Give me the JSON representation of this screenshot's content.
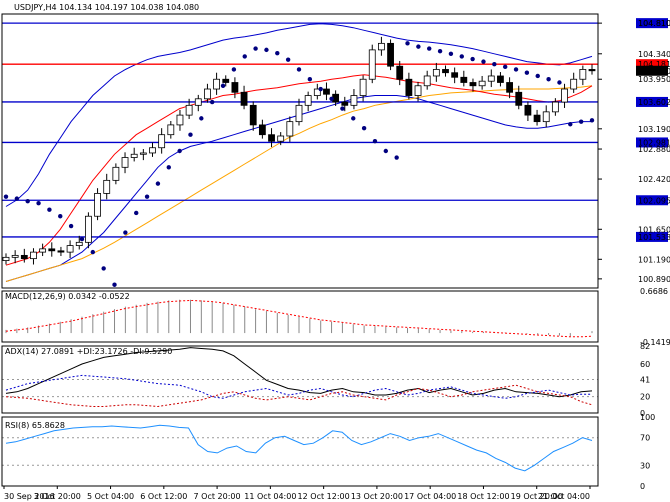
{
  "chart_data": [
    {
      "type": "candlestick",
      "pane": "main",
      "header": "USDJPY,H4  104.134 104.197 104.038 104.080",
      "ylim": [
        100.75,
        104.95
      ],
      "price_ticks": [
        "104.810",
        "104.340",
        "103.950",
        "103.190",
        "102.880",
        "102.420",
        "101.650",
        "101.190",
        "100.890"
      ],
      "levels": [
        {
          "label": "104.810",
          "value": 104.81,
          "color": "#0000cc"
        },
        {
          "label": "104.181",
          "value": 104.181,
          "color": "#ff0000"
        },
        {
          "label": "103.602",
          "value": 103.602,
          "color": "#0000cc"
        },
        {
          "label": "102.981",
          "value": 102.981,
          "color": "#0000cc"
        },
        {
          "label": "102.095",
          "value": 102.095,
          "color": "#0000cc"
        },
        {
          "label": "101.533",
          "value": 101.533,
          "color": "#0000cc"
        }
      ],
      "current_price": {
        "label": "104.080",
        "value": 104.08
      },
      "close": [
        101.22,
        101.25,
        101.2,
        101.3,
        101.35,
        101.32,
        101.3,
        101.4,
        101.45,
        101.85,
        102.2,
        102.4,
        102.6,
        102.75,
        102.8,
        102.82,
        102.9,
        103.1,
        103.25,
        103.4,
        103.55,
        103.65,
        103.8,
        103.95,
        103.9,
        103.75,
        103.55,
        103.25,
        103.1,
        103.0,
        103.08,
        103.3,
        103.55,
        103.7,
        103.8,
        103.72,
        103.6,
        103.55,
        103.7,
        103.95,
        104.4,
        104.5,
        104.15,
        103.95,
        103.7,
        103.85,
        104.0,
        104.1,
        104.05,
        103.98,
        103.9,
        103.85,
        103.92,
        104.0,
        103.9,
        103.75,
        103.55,
        103.4,
        103.3,
        103.45,
        103.6,
        103.8,
        103.95,
        104.1,
        104.08
      ],
      "upper_band": [
        102.0,
        102.1,
        102.25,
        102.5,
        102.8,
        103.05,
        103.3,
        103.5,
        103.7,
        103.85,
        104.0,
        104.1,
        104.18,
        104.25,
        104.3,
        104.33,
        104.36,
        104.4,
        104.45,
        104.5,
        104.55,
        104.58,
        104.6,
        104.63,
        104.66,
        104.7,
        104.73,
        104.76,
        104.79,
        104.8,
        104.79,
        104.77,
        104.74,
        104.7,
        104.66,
        104.62,
        104.58,
        104.55,
        104.53,
        104.52,
        104.5,
        104.48,
        104.45,
        104.42,
        104.38,
        104.34,
        104.3,
        104.26,
        104.22,
        104.2,
        104.18,
        104.17,
        104.2,
        104.25,
        104.3
      ],
      "lower_band": [
        100.85,
        100.9,
        100.95,
        101.0,
        101.05,
        101.1,
        101.2,
        101.3,
        101.45,
        101.6,
        101.8,
        102.0,
        102.2,
        102.4,
        102.6,
        102.75,
        102.85,
        102.92,
        102.96,
        103.0,
        103.05,
        103.1,
        103.15,
        103.2,
        103.25,
        103.3,
        103.35,
        103.4,
        103.45,
        103.5,
        103.55,
        103.6,
        103.65,
        103.68,
        103.7,
        103.7,
        103.7,
        103.68,
        103.65,
        103.6,
        103.55,
        103.5,
        103.45,
        103.4,
        103.35,
        103.3,
        103.25,
        103.22,
        103.2,
        103.2,
        103.22,
        103.25,
        103.28,
        103.3,
        103.3
      ],
      "ma_fast": [
        101.1,
        101.15,
        101.2,
        101.3,
        101.45,
        101.65,
        101.9,
        102.15,
        102.4,
        102.6,
        102.8,
        102.95,
        103.1,
        103.2,
        103.3,
        103.4,
        103.5,
        103.55,
        103.6,
        103.65,
        103.7,
        103.72,
        103.75,
        103.78,
        103.8,
        103.82,
        103.85,
        103.88,
        103.9,
        103.92,
        103.95,
        103.97,
        104.0,
        104.02,
        104.0,
        103.98,
        103.95,
        103.92,
        103.9,
        103.88,
        103.85,
        103.82,
        103.8,
        103.78,
        103.75,
        103.72,
        103.7,
        103.68,
        103.65,
        103.62,
        103.6,
        103.62,
        103.68,
        103.75,
        103.85
      ],
      "ma_slow": [
        100.85,
        100.9,
        100.95,
        101.0,
        101.05,
        101.1,
        101.15,
        101.2,
        101.28,
        101.36,
        101.45,
        101.55,
        101.65,
        101.75,
        101.85,
        101.95,
        102.05,
        102.15,
        102.25,
        102.35,
        102.45,
        102.55,
        102.65,
        102.75,
        102.85,
        102.95,
        103.05,
        103.12,
        103.2,
        103.27,
        103.33,
        103.4,
        103.46,
        103.5,
        103.55,
        103.58,
        103.61,
        103.64,
        103.67,
        103.7,
        103.72,
        103.74,
        103.75,
        103.76,
        103.77,
        103.78,
        103.79,
        103.8,
        103.8,
        103.8,
        103.8,
        103.81,
        103.82,
        103.83,
        103.85
      ],
      "sar": [
        102.15,
        102.12,
        102.08,
        102.05,
        101.95,
        101.85,
        101.7,
        101.5,
        101.3,
        101.05,
        100.8,
        101.6,
        101.9,
        102.15,
        102.35,
        102.6,
        102.85,
        103.1,
        103.35,
        103.6,
        103.85,
        104.1,
        104.3,
        104.42,
        104.4,
        104.35,
        104.25,
        104.1,
        103.95,
        103.8,
        103.65,
        103.5,
        103.35,
        103.2,
        103.0,
        102.85,
        102.75,
        104.5,
        104.45,
        104.42,
        104.38,
        104.34,
        104.3,
        104.26,
        104.22,
        104.18,
        104.14,
        104.1,
        104.05,
        104.0,
        103.95,
        103.9,
        103.26,
        103.3,
        103.32
      ]
    },
    {
      "type": "line",
      "pane": "macd",
      "label": "MACD(12,26,9) 0.0342 -0.0522",
      "ylim": [
        -0.1419,
        0.6686
      ],
      "ticks": [
        "0.6686",
        "-0.1419"
      ],
      "histogram": [
        0.05,
        0.07,
        0.09,
        0.12,
        0.15,
        0.18,
        0.22,
        0.26,
        0.3,
        0.34,
        0.38,
        0.42,
        0.45,
        0.48,
        0.5,
        0.52,
        0.53,
        0.53,
        0.52,
        0.5,
        0.48,
        0.45,
        0.42,
        0.38,
        0.35,
        0.32,
        0.29,
        0.26,
        0.23,
        0.2,
        0.18,
        0.16,
        0.14,
        0.12,
        0.11,
        0.1,
        0.09,
        0.08,
        0.07,
        0.06,
        0.05,
        0.04,
        0.03,
        0.02,
        0.02,
        0.01,
        0.01,
        0.0,
        -0.01,
        -0.02,
        -0.03,
        -0.04,
        -0.05,
        0.0,
        0.03
      ],
      "signal": [
        0.03,
        0.05,
        0.07,
        0.1,
        0.13,
        0.16,
        0.19,
        0.23,
        0.27,
        0.31,
        0.35,
        0.39,
        0.42,
        0.45,
        0.48,
        0.5,
        0.51,
        0.52,
        0.51,
        0.5,
        0.48,
        0.45,
        0.42,
        0.39,
        0.36,
        0.33,
        0.3,
        0.27,
        0.24,
        0.21,
        0.19,
        0.17,
        0.15,
        0.13,
        0.12,
        0.11,
        0.1,
        0.09,
        0.08,
        0.07,
        0.06,
        0.05,
        0.04,
        0.03,
        0.02,
        0.01,
        0.0,
        -0.01,
        -0.02,
        -0.03,
        -0.04,
        -0.05,
        -0.06,
        -0.06,
        -0.05
      ]
    },
    {
      "type": "line",
      "pane": "adx",
      "label": "ADX(14) 27.0891 +DI:23.1726 -DI:9.5290",
      "ylim": [
        0,
        82
      ],
      "ticks": [
        "82",
        "60",
        "41",
        "20",
        "0"
      ],
      "series": [
        {
          "label": "ADX",
          "color": "#000000",
          "values": [
            24,
            26,
            30,
            36,
            42,
            48,
            54,
            60,
            64,
            68,
            70,
            72,
            74,
            75,
            76,
            77,
            78,
            80,
            79,
            78,
            76,
            70,
            60,
            50,
            40,
            35,
            30,
            28,
            25,
            24,
            28,
            30,
            26,
            25,
            22,
            22,
            24,
            28,
            30,
            25,
            28,
            30,
            26,
            22,
            24,
            28,
            30,
            26,
            25,
            24,
            22,
            20,
            22,
            26,
            27
          ]
        },
        {
          "label": "+DI",
          "color": "#0000cc",
          "values": [
            28,
            32,
            36,
            38,
            40,
            42,
            44,
            46,
            45,
            44,
            43,
            42,
            40,
            38,
            36,
            35,
            34,
            30,
            26,
            20,
            18,
            22,
            26,
            28,
            30,
            26,
            22,
            24,
            28,
            30,
            26,
            22,
            20,
            24,
            28,
            30,
            26,
            22,
            24,
            28,
            30,
            32,
            28,
            24,
            22,
            20,
            18,
            20,
            24,
            26,
            28,
            25,
            22,
            23,
            23
          ]
        },
        {
          "label": "-DI",
          "color": "#cc0000",
          "values": [
            20,
            19,
            18,
            16,
            14,
            12,
            10,
            9,
            8,
            8,
            9,
            10,
            10,
            9,
            8,
            10,
            12,
            14,
            16,
            20,
            24,
            26,
            22,
            18,
            16,
            18,
            20,
            18,
            16,
            20,
            24,
            26,
            22,
            20,
            18,
            16,
            22,
            26,
            30,
            28,
            24,
            20,
            22,
            26,
            28,
            30,
            32,
            34,
            30,
            26,
            24,
            22,
            20,
            14,
            10
          ]
        }
      ]
    },
    {
      "type": "line",
      "pane": "rsi",
      "label": "RSI(8) 65.8628",
      "ylim": [
        0,
        100
      ],
      "ticks": [
        "100",
        "70",
        "30",
        "0"
      ],
      "values": [
        62,
        64,
        68,
        72,
        76,
        80,
        82,
        84,
        85,
        86,
        86,
        87,
        86,
        85,
        84,
        86,
        88,
        87,
        85,
        84,
        60,
        50,
        48,
        55,
        58,
        50,
        48,
        62,
        70,
        72,
        66,
        60,
        62,
        70,
        80,
        78,
        66,
        60,
        64,
        70,
        76,
        72,
        66,
        70,
        72,
        76,
        70,
        64,
        58,
        52,
        48,
        40,
        34,
        26,
        22,
        30,
        40,
        50,
        56,
        62,
        70,
        66
      ]
    }
  ],
  "time_labels": [
    "30 Sep 2016",
    "3 Oct 20:00",
    "5 Oct 04:00",
    "6 Oct 12:00",
    "7 Oct 20:00",
    "11 Oct 04:00",
    "12 Oct 12:00",
    "13 Oct 20:00",
    "17 Oct 04:00",
    "18 Oct 12:00",
    "19 Oct 20:00",
    "21 Oct 04:00"
  ],
  "colors": {
    "axis": "#000000",
    "grid": "#000000",
    "up": "#ffffff",
    "down": "#000000",
    "band": "#0000cc",
    "ma_fast": "#ff0000",
    "ma_slow": "#ffa500",
    "sar": "#00007f",
    "level_blue": "#0000cc",
    "level_red": "#ff0000",
    "rsi": "#1e90ff",
    "macd_hist": "#888888",
    "macd_signal": "#ff0000"
  }
}
